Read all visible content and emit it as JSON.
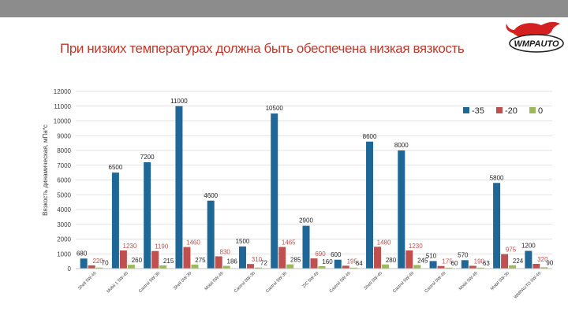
{
  "slide": {
    "title": "При низких температурах должна быть обеспечена низкая вязкость",
    "logo_text": "WMPAUTO"
  },
  "colors": {
    "s1": "#1f6797",
    "s2": "#c0504d",
    "s3": "#9bbb59",
    "grid": "#d9d9d9",
    "title": "#c0392b"
  },
  "chart_data": {
    "type": "bar",
    "title": "",
    "xlabel": "",
    "ylabel": "Вязкость динамическая, мПа*с",
    "ylim": [
      0,
      12000
    ],
    "yticks": [
      0,
      1000,
      2000,
      3000,
      4000,
      5000,
      6000,
      7000,
      8000,
      9000,
      10000,
      11000,
      12000
    ],
    "grid": true,
    "legend_position": "top-right",
    "categories": [
      "Shell 5W-40",
      "Mobil 1 5W-40",
      "Castrol 5W-30",
      "Shell 0W-30",
      "Mobil 5W-40",
      "Castrol 0W-30",
      "Castrol 5W-30",
      "ZIC 5W-40",
      "Castrol 5W-40",
      "Shell 5W-40",
      "Castrol 5W-40",
      "Castrol 0W-40",
      "Mobil 5W-40",
      "Mobil 5W-30",
      "WMPAUTO 5W-40"
    ],
    "series": [
      {
        "name": "-35",
        "values": [
          680,
          6500,
          7200,
          11000,
          4600,
          1500,
          10500,
          2900,
          600,
          8600,
          8000,
          510,
          570,
          5800,
          1200
        ]
      },
      {
        "name": "-20",
        "values": [
          220,
          1230,
          1190,
          1460,
          830,
          310,
          1465,
          690,
          195,
          1480,
          1230,
          175,
          190,
          975,
          320
        ]
      },
      {
        "name": "0",
        "values": [
          70,
          260,
          215,
          275,
          186,
          72,
          285,
          160,
          64,
          280,
          245,
          60,
          63,
          224,
          90
        ]
      }
    ]
  }
}
